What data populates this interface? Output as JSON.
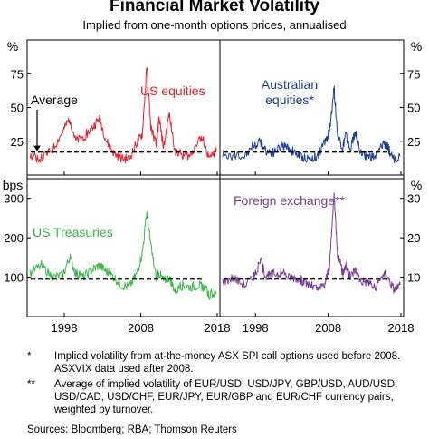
{
  "title": "Financial Market Volatility",
  "subtitle": "Implied from one-month options prices, annualised",
  "footnotes": [
    {
      "mark": "*",
      "text": "Implied volatility from at-the-money ASX SPI call options used before 2008. ASXVIX data used after 2008."
    },
    {
      "mark": "**",
      "text": "Average of implied volatility of EUR/USD, USD/JPY, GBP/USD, AUD/USD, USD/CAD, USD/CHF, EUR/JPY, EUR/GBP and EUR/CHF currency pairs, weighted by turnover."
    }
  ],
  "source": "Sources: Bloomberg; RBA; Thomson Reuters",
  "colors": {
    "us_equities": "#e8212b",
    "aus_equities": "#1b3d96",
    "us_treasuries": "#3cb54a",
    "fx": "#7a3b97",
    "average": "#000000"
  },
  "chart_data": [
    {
      "type": "line",
      "panel": "top-left",
      "series": [
        {
          "name": "US equities",
          "color": "#e8212b",
          "x": [
            1993.5,
            1995,
            1996.5,
            1997.8,
            1998.7,
            1999.5,
            2000.5,
            2001.7,
            2002.6,
            2003.5,
            2004.5,
            2005.5,
            2006.5,
            2007.5,
            2008.2,
            2008.8,
            2009.3,
            2010.0,
            2010.4,
            2011.0,
            2011.7,
            2012.5,
            2013.5,
            2014.5,
            2015.6,
            2016.2,
            2017.0,
            2017.9
          ],
          "values": [
            14,
            12,
            19,
            32,
            42,
            25,
            28,
            35,
            42,
            25,
            16,
            12,
            12,
            24,
            30,
            80,
            36,
            22,
            42,
            20,
            45,
            18,
            15,
            14,
            28,
            25,
            11,
            20
          ]
        }
      ],
      "annotation": "Average",
      "average": 17,
      "ylabel": "%",
      "ylim": [
        0,
        100
      ],
      "yticks": [
        25,
        50,
        75
      ],
      "xlim": [
        1993.5,
        2018
      ],
      "xticks": [
        "1998",
        "2008",
        "2018"
      ]
    },
    {
      "type": "line",
      "panel": "top-right",
      "series": [
        {
          "name": "Australian equities*",
          "color": "#1b3d96",
          "x": [
            1993.5,
            1995,
            1996.5,
            1997.8,
            1998.7,
            1999.5,
            2000.5,
            2001.7,
            2002.6,
            2003.5,
            2004.5,
            2005.5,
            2006.5,
            2007.5,
            2008.2,
            2008.8,
            2009.3,
            2010.0,
            2010.4,
            2011.0,
            2011.7,
            2012.5,
            2013.5,
            2014.5,
            2015.6,
            2016.2,
            2017.0,
            2017.9
          ],
          "values": [
            16,
            14,
            15,
            22,
            25,
            18,
            17,
            22,
            20,
            16,
            13,
            12,
            14,
            24,
            32,
            65,
            30,
            20,
            30,
            18,
            32,
            16,
            14,
            13,
            24,
            20,
            12,
            14
          ]
        }
      ],
      "average": 17,
      "ylabel": "%",
      "ylim": [
        0,
        100
      ],
      "yticks": [
        25,
        50,
        75
      ],
      "xlim": [
        1993.5,
        2018
      ],
      "xticks": [
        "1998",
        "2008",
        "2018"
      ]
    },
    {
      "type": "line",
      "panel": "bottom-left",
      "series": [
        {
          "name": "US Treasuries",
          "color": "#3cb54a",
          "x": [
            1993.5,
            1995,
            1996.5,
            1997.8,
            1998.7,
            1999.5,
            2000.5,
            2001.7,
            2002.6,
            2003.5,
            2004.5,
            2005.5,
            2006.5,
            2007.5,
            2008.2,
            2008.8,
            2009.3,
            2010.0,
            2010.4,
            2011.0,
            2011.7,
            2012.5,
            2013.5,
            2014.5,
            2015.6,
            2016.2,
            2017.0,
            2017.9
          ],
          "values": [
            110,
            130,
            100,
            105,
            150,
            110,
            100,
            120,
            130,
            115,
            100,
            80,
            75,
            110,
            160,
            265,
            180,
            100,
            110,
            90,
            100,
            65,
            80,
            75,
            80,
            75,
            55,
            60
          ]
        }
      ],
      "average": 95,
      "ylabel": "bps",
      "ylim": [
        0,
        350
      ],
      "yticks": [
        100,
        200,
        300
      ],
      "xlim": [
        1993.5,
        2018
      ],
      "xticks": [
        "1998",
        "2008",
        "2018"
      ]
    },
    {
      "type": "line",
      "panel": "bottom-right",
      "series": [
        {
          "name": "Foreign exchange**",
          "color": "#7a3b97",
          "x": [
            1993.5,
            1995,
            1996.5,
            1997.8,
            1998.7,
            1999.5,
            2000.5,
            2001.7,
            2002.6,
            2003.5,
            2004.5,
            2005.5,
            2006.5,
            2007.5,
            2008.2,
            2008.8,
            2009.3,
            2010.0,
            2010.4,
            2011.0,
            2011.7,
            2012.5,
            2013.5,
            2014.5,
            2015.6,
            2016.2,
            2017.0,
            2017.9
          ],
          "values": [
            9,
            10,
            8,
            10,
            14,
            10,
            11,
            11,
            10,
            10,
            9,
            8,
            7,
            8,
            13,
            31,
            16,
            11,
            13,
            10,
            12,
            9,
            9,
            7,
            11,
            10,
            7,
            8
          ]
        }
      ],
      "average": 9.5,
      "ylabel": "%",
      "ylim": [
        0,
        35
      ],
      "yticks": [
        10,
        20,
        30
      ],
      "xlim": [
        1993.5,
        2018
      ],
      "xticks": [
        "1998",
        "2008",
        "2018"
      ]
    }
  ]
}
